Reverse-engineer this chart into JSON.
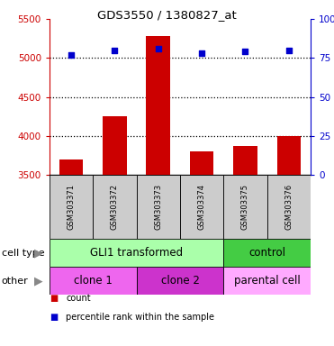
{
  "title": "GDS3550 / 1380827_at",
  "samples": [
    "GSM303371",
    "GSM303372",
    "GSM303373",
    "GSM303374",
    "GSM303375",
    "GSM303376"
  ],
  "counts": [
    3700,
    4250,
    5280,
    3800,
    3870,
    4000
  ],
  "percentile_ranks": [
    77,
    80,
    81,
    78,
    79,
    80
  ],
  "ylim_left": [
    3500,
    5500
  ],
  "ylim_right": [
    0,
    100
  ],
  "yticks_left": [
    3500,
    4000,
    4500,
    5000,
    5500
  ],
  "yticks_right": [
    0,
    25,
    50,
    75,
    100
  ],
  "bar_color": "#cc0000",
  "dot_color": "#0000cc",
  "bar_baseline": 3500,
  "cell_type_groups": [
    {
      "label": "GLI1 transformed",
      "cols": [
        0,
        1,
        2,
        3
      ],
      "color": "#aaffaa"
    },
    {
      "label": "control",
      "cols": [
        4,
        5
      ],
      "color": "#44cc44"
    }
  ],
  "other_groups": [
    {
      "label": "clone 1",
      "cols": [
        0,
        1
      ],
      "color": "#ee66ee"
    },
    {
      "label": "clone 2",
      "cols": [
        2,
        3
      ],
      "color": "#cc33cc"
    },
    {
      "label": "parental cell",
      "cols": [
        4,
        5
      ],
      "color": "#ffaaff"
    }
  ],
  "legend_items": [
    {
      "label": "count",
      "color": "#cc0000"
    },
    {
      "label": "percentile rank within the sample",
      "color": "#0000cc"
    }
  ],
  "tick_label_color_left": "#cc0000",
  "tick_label_color_right": "#0000cc",
  "sample_box_color": "#cccccc",
  "grid_dotted": [
    4000,
    4500,
    5000
  ],
  "row_label_color": "#888888"
}
